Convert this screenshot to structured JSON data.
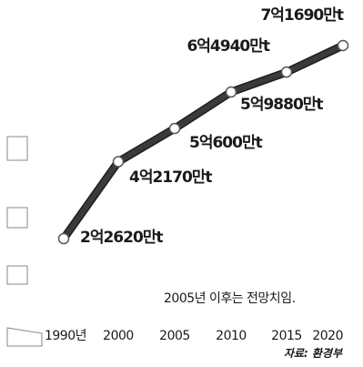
{
  "chart_data": {
    "type": "line",
    "title": "",
    "xlabel": "",
    "ylabel": "",
    "x": [
      "1990년",
      "2000",
      "2005",
      "2010",
      "2015",
      "2020"
    ],
    "series": [
      {
        "values": [
          22620,
          42170,
          50600,
          59880,
          64940,
          71690
        ],
        "labels": [
          "2억2620만t",
          "4억2170만t",
          "5억600만t",
          "5억9880만t",
          "6억4940만t",
          "7억1690만t"
        ]
      }
    ],
    "ylim": [
      18000,
      74000
    ],
    "note": "2005년 이후는 전망치임.",
    "source": "자료: 환경부",
    "colors": {
      "line": "#3a3a3a",
      "marker_fill": "#ffffff",
      "marker_stroke": "#555555"
    }
  }
}
